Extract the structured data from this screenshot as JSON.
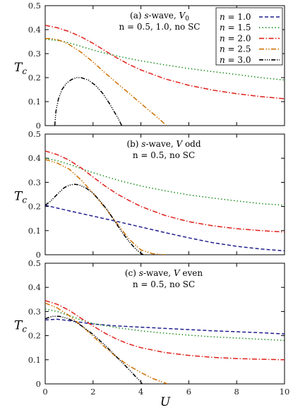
{
  "figure": {
    "xlabel": "U",
    "ylabel": "T",
    "ylabel_sub": "c",
    "legend_placement": "top-right of panel (a)"
  },
  "chart_data": [
    {
      "type": "line",
      "panel": "a",
      "annotation_line1_prefix": "(a) ",
      "annotation_line1_italic": "s",
      "annotation_line1_mid": "-wave, ",
      "annotation_line1_var": "V",
      "annotation_line1_sub": "0",
      "annotation_line1_suffix": "",
      "annotation_line2": "n = 0.5, 1.0, no SC",
      "xlim": [
        0,
        10
      ],
      "ylim": [
        0,
        0.5
      ],
      "xticks": [],
      "yticks": [
        "0",
        "0.1",
        "0.2",
        "0.3",
        "0.4",
        "0.5"
      ],
      "grid": false,
      "series": [
        {
          "name": "n = 1.5",
          "color": "#007f00",
          "dash": "1.3 3.2",
          "x": [
            0,
            0.5,
            1,
            1.5,
            2,
            2.5,
            3,
            3.5,
            4,
            5,
            6,
            7,
            8,
            9,
            10
          ],
          "y": [
            0.36,
            0.355,
            0.345,
            0.33,
            0.315,
            0.302,
            0.29,
            0.28,
            0.27,
            0.253,
            0.238,
            0.225,
            0.213,
            0.2,
            0.19
          ]
        },
        {
          "name": "n = 2.0",
          "color": "#e0201a",
          "dash": "7 2.5 1.5 2.5",
          "x": [
            0,
            0.5,
            1,
            1.5,
            2,
            2.5,
            3,
            3.5,
            4,
            5,
            6,
            7,
            8,
            9,
            10
          ],
          "y": [
            0.418,
            0.408,
            0.392,
            0.37,
            0.343,
            0.312,
            0.282,
            0.255,
            0.232,
            0.195,
            0.168,
            0.148,
            0.133,
            0.121,
            0.112
          ]
        },
        {
          "name": "n = 2.5",
          "color": "#d07000",
          "dash": "7 2.5 1.5 2 1.5 2.5",
          "x": [
            0,
            0.25,
            0.5,
            0.75,
            1,
            1.5,
            2,
            2.5,
            3,
            3.5,
            4,
            4.3,
            4.6,
            4.85,
            5.0,
            5.05
          ],
          "y": [
            0.363,
            0.363,
            0.358,
            0.35,
            0.338,
            0.306,
            0.265,
            0.22,
            0.177,
            0.135,
            0.092,
            0.067,
            0.042,
            0.02,
            0.006,
            0.0
          ]
        },
        {
          "name": "n = 3.0",
          "color": "#000000",
          "dash": "6 2 1.2 1.8 1.2 1.8 1.2 2",
          "x": [
            0.4,
            0.45,
            0.55,
            0.7,
            0.9,
            1.1,
            1.3,
            1.5,
            1.8,
            2.1,
            2.4,
            2.7,
            2.9,
            3.05,
            3.15,
            3.2
          ],
          "y": [
            0.0,
            0.06,
            0.11,
            0.15,
            0.178,
            0.192,
            0.2,
            0.2,
            0.19,
            0.168,
            0.135,
            0.09,
            0.055,
            0.03,
            0.01,
            0.0
          ]
        }
      ]
    },
    {
      "type": "line",
      "panel": "b",
      "annotation_line1_prefix": "(b) ",
      "annotation_line1_italic": "s",
      "annotation_line1_mid": "-wave, ",
      "annotation_line1_var": "V",
      "annotation_line1_sub": "",
      "annotation_line1_suffix": " odd",
      "annotation_line2": "n = 0.5, no SC",
      "xlim": [
        0,
        10
      ],
      "ylim": [
        0,
        0.5
      ],
      "xticks": [],
      "yticks": [
        "0",
        "0.1",
        "0.2",
        "0.3",
        "0.4",
        "0.5"
      ],
      "grid": false,
      "series": [
        {
          "name": "n = 1.0",
          "color": "#1f1f8f",
          "dash": "5 3",
          "x": [
            0,
            1,
            2,
            3,
            4,
            5,
            6,
            7,
            8,
            9,
            10
          ],
          "y": [
            0.205,
            0.182,
            0.16,
            0.138,
            0.115,
            0.092,
            0.07,
            0.05,
            0.035,
            0.024,
            0.016
          ]
        },
        {
          "name": "n = 1.5",
          "color": "#007f00",
          "dash": "1.3 3.2",
          "x": [
            0,
            0.5,
            1,
            1.5,
            2,
            2.5,
            3,
            3.5,
            4,
            5,
            6,
            7,
            8,
            9,
            10
          ],
          "y": [
            0.4,
            0.39,
            0.375,
            0.357,
            0.34,
            0.325,
            0.31,
            0.297,
            0.285,
            0.265,
            0.248,
            0.235,
            0.223,
            0.212,
            0.205
          ]
        },
        {
          "name": "n = 2.0",
          "color": "#e0201a",
          "dash": "7 2.5 1.5 2.5",
          "x": [
            0,
            0.5,
            1,
            1.5,
            2,
            2.5,
            3,
            3.5,
            4,
            5,
            6,
            7,
            8,
            9,
            10
          ],
          "y": [
            0.43,
            0.415,
            0.392,
            0.36,
            0.322,
            0.285,
            0.252,
            0.225,
            0.2,
            0.163,
            0.137,
            0.12,
            0.108,
            0.1,
            0.094
          ]
        },
        {
          "name": "n = 2.5",
          "color": "#d07000",
          "dash": "7 2.5 1.5 2 1.5 2.5",
          "x": [
            0,
            0.5,
            1,
            1.5,
            2,
            2.5,
            3,
            3.5,
            4,
            4.5,
            5
          ],
          "y": [
            0.395,
            0.38,
            0.355,
            0.31,
            0.255,
            0.195,
            0.13,
            0.065,
            0.02,
            0.004,
            0.0
          ]
        },
        {
          "name": "n = 3.0",
          "color": "#000000",
          "dash": "6 2 1.2 1.8 1.2 1.8 1.2 2",
          "x": [
            0,
            0.2,
            0.4,
            0.6,
            0.8,
            1.0,
            1.2,
            1.4,
            1.7,
            2.0,
            2.3,
            2.6,
            2.9,
            3.2,
            3.5,
            3.8,
            4.0,
            4.1
          ],
          "y": [
            0.205,
            0.22,
            0.24,
            0.26,
            0.278,
            0.288,
            0.292,
            0.29,
            0.277,
            0.255,
            0.222,
            0.185,
            0.14,
            0.095,
            0.055,
            0.022,
            0.006,
            0.0
          ]
        }
      ]
    },
    {
      "type": "line",
      "panel": "c",
      "annotation_line1_prefix": "(c) ",
      "annotation_line1_italic": "s",
      "annotation_line1_mid": "-wave, ",
      "annotation_line1_var": "V",
      "annotation_line1_sub": "",
      "annotation_line1_suffix": " even",
      "annotation_line2": "n = 0.5, no SC",
      "xlim": [
        0,
        10
      ],
      "ylim": [
        0,
        0.5
      ],
      "xticks": [
        "0",
        "2",
        "4",
        "6",
        "8",
        "10"
      ],
      "yticks": [
        "0",
        "0.1",
        "0.2",
        "0.3",
        "0.4",
        "0.5"
      ],
      "grid": false,
      "series": [
        {
          "name": "n = 1.0",
          "color": "#1f1f8f",
          "dash": "5 3",
          "x": [
            0,
            0.5,
            1,
            1.5,
            2,
            3,
            4,
            5,
            6,
            7,
            8,
            9,
            10
          ],
          "y": [
            0.265,
            0.268,
            0.262,
            0.255,
            0.248,
            0.24,
            0.235,
            0.23,
            0.225,
            0.22,
            0.216,
            0.212,
            0.207
          ]
        },
        {
          "name": "n = 1.5",
          "color": "#007f00",
          "dash": "1.3 3.2",
          "x": [
            0,
            0.5,
            1,
            1.5,
            2,
            3,
            4,
            5,
            6,
            7,
            8,
            9,
            10
          ],
          "y": [
            0.31,
            0.3,
            0.283,
            0.265,
            0.25,
            0.233,
            0.22,
            0.21,
            0.202,
            0.195,
            0.19,
            0.185,
            0.18
          ]
        },
        {
          "name": "n = 2.0",
          "color": "#e0201a",
          "dash": "7 2.5 1.5 2.5",
          "x": [
            0,
            0.5,
            1,
            1.5,
            2,
            2.5,
            3,
            3.5,
            4,
            5,
            6,
            7,
            8,
            9,
            10
          ],
          "y": [
            0.345,
            0.33,
            0.305,
            0.272,
            0.24,
            0.21,
            0.185,
            0.165,
            0.15,
            0.13,
            0.118,
            0.11,
            0.105,
            0.102,
            0.1
          ]
        },
        {
          "name": "n = 2.5",
          "color": "#d07000",
          "dash": "7 2.5 1.5 2 1.5 2.5",
          "x": [
            0,
            0.5,
            1,
            1.5,
            2,
            2.5,
            3,
            3.5,
            4,
            4.5,
            5,
            5.1
          ],
          "y": [
            0.335,
            0.315,
            0.283,
            0.243,
            0.198,
            0.152,
            0.11,
            0.075,
            0.047,
            0.022,
            0.004,
            0.0
          ]
        },
        {
          "name": "n = 3.0",
          "color": "#000000",
          "dash": "6 2 1.2 1.8 1.2 1.8 1.2 2",
          "x": [
            0,
            0.3,
            0.6,
            0.9,
            1.2,
            1.5,
            2.0,
            2.5,
            3.0,
            3.5,
            3.8,
            4.0,
            4.05
          ],
          "y": [
            0.27,
            0.28,
            0.28,
            0.272,
            0.26,
            0.242,
            0.205,
            0.16,
            0.11,
            0.06,
            0.028,
            0.008,
            0.0
          ]
        }
      ]
    }
  ],
  "legend": {
    "entries": [
      {
        "var": "n",
        "eq": " = 1.0",
        "color": "#1f1f8f",
        "dash": "5 3"
      },
      {
        "var": "n",
        "eq": " = 1.5",
        "color": "#007f00",
        "dash": "1.3 3.2"
      },
      {
        "var": "n",
        "eq": " = 2.0",
        "color": "#e0201a",
        "dash": "7 2.5 1.5 2.5"
      },
      {
        "var": "n",
        "eq": " = 2.5",
        "color": "#d07000",
        "dash": "7 2.5 1.5 2 1.5 2.5"
      },
      {
        "var": "n",
        "eq": " = 3.0",
        "color": "#000000",
        "dash": "6 2 1.2 1.8 1.2 1.8 1.2 2"
      }
    ]
  }
}
